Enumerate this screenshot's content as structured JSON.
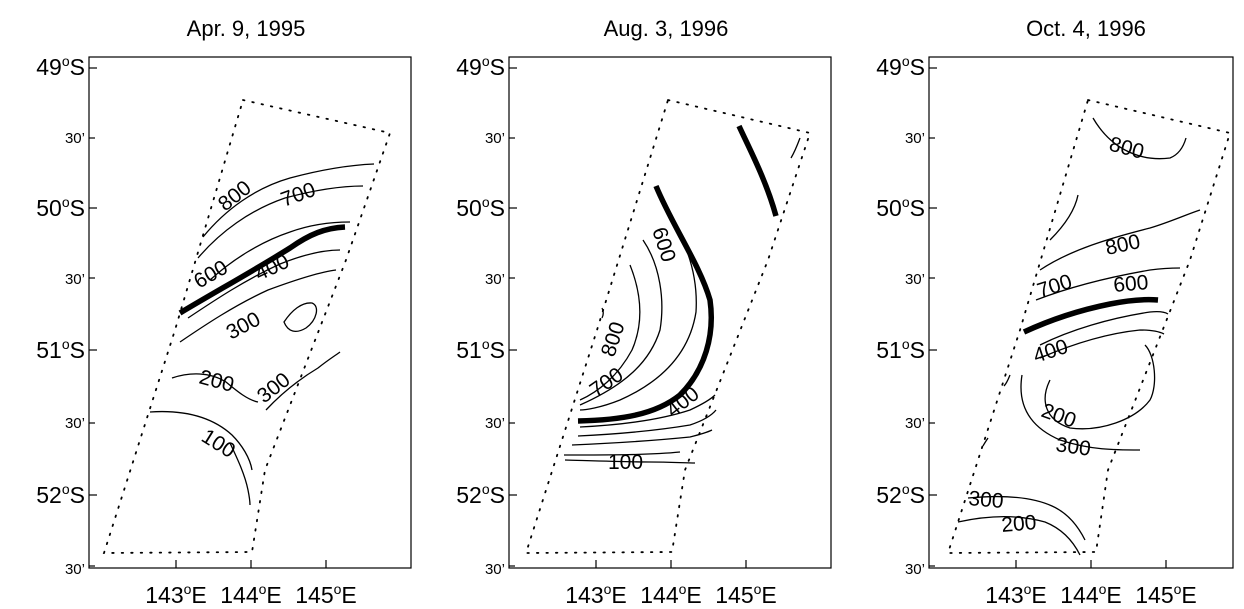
{
  "panels": [
    {
      "title": "Apr. 9, 1995",
      "y_labels": [
        {
          "deg": "49",
          "hemi": "S",
          "minutes": ""
        },
        {
          "deg": "",
          "hemi": "",
          "minutes": "30’"
        },
        {
          "deg": "50",
          "hemi": "S",
          "minutes": ""
        },
        {
          "deg": "",
          "hemi": "",
          "minutes": "30’"
        },
        {
          "deg": "51",
          "hemi": "S",
          "minutes": ""
        },
        {
          "deg": "",
          "hemi": "",
          "minutes": "30’"
        },
        {
          "deg": "52",
          "hemi": "S",
          "minutes": ""
        },
        {
          "deg": "",
          "hemi": "",
          "minutes": "30’"
        }
      ],
      "x_labels": [
        {
          "deg": "143",
          "hemi": "E"
        },
        {
          "deg": "144",
          "hemi": "E"
        },
        {
          "deg": "145",
          "hemi": "E"
        }
      ],
      "contour_labels": [
        "800",
        "700",
        "600",
        "400",
        "300",
        "200",
        "300",
        "100"
      ]
    },
    {
      "title": "Aug. 3, 1996",
      "y_labels": [
        {
          "deg": "49",
          "hemi": "S",
          "minutes": ""
        },
        {
          "deg": "",
          "hemi": "",
          "minutes": "30’"
        },
        {
          "deg": "50",
          "hemi": "S",
          "minutes": ""
        },
        {
          "deg": "",
          "hemi": "",
          "minutes": "30’"
        },
        {
          "deg": "51",
          "hemi": "S",
          "minutes": ""
        },
        {
          "deg": "",
          "hemi": "",
          "minutes": "30’"
        },
        {
          "deg": "52",
          "hemi": "S",
          "minutes": ""
        },
        {
          "deg": "",
          "hemi": "",
          "minutes": "30’"
        }
      ],
      "x_labels": [
        {
          "deg": "143",
          "hemi": "E"
        },
        {
          "deg": "144",
          "hemi": "E"
        },
        {
          "deg": "145",
          "hemi": "E"
        }
      ],
      "contour_labels": [
        "600",
        "800",
        "700",
        "400",
        "100"
      ]
    },
    {
      "title": "Oct. 4, 1996",
      "y_labels": [
        {
          "deg": "49",
          "hemi": "S",
          "minutes": ""
        },
        {
          "deg": "",
          "hemi": "",
          "minutes": "30’"
        },
        {
          "deg": "50",
          "hemi": "S",
          "minutes": ""
        },
        {
          "deg": "",
          "hemi": "",
          "minutes": "30’"
        },
        {
          "deg": "51",
          "hemi": "S",
          "minutes": ""
        },
        {
          "deg": "",
          "hemi": "",
          "minutes": "30’"
        },
        {
          "deg": "52",
          "hemi": "S",
          "minutes": ""
        },
        {
          "deg": "",
          "hemi": "",
          "minutes": "30’"
        }
      ],
      "x_labels": [
        {
          "deg": "143",
          "hemi": "E"
        },
        {
          "deg": "144",
          "hemi": "E"
        },
        {
          "deg": "145",
          "hemi": "E"
        }
      ],
      "contour_labels": [
        "800",
        "800",
        "700",
        "600",
        "400",
        "200",
        "300",
        "300",
        "200"
      ]
    }
  ],
  "colors": {
    "line": "#000000",
    "background": "#ffffff"
  }
}
